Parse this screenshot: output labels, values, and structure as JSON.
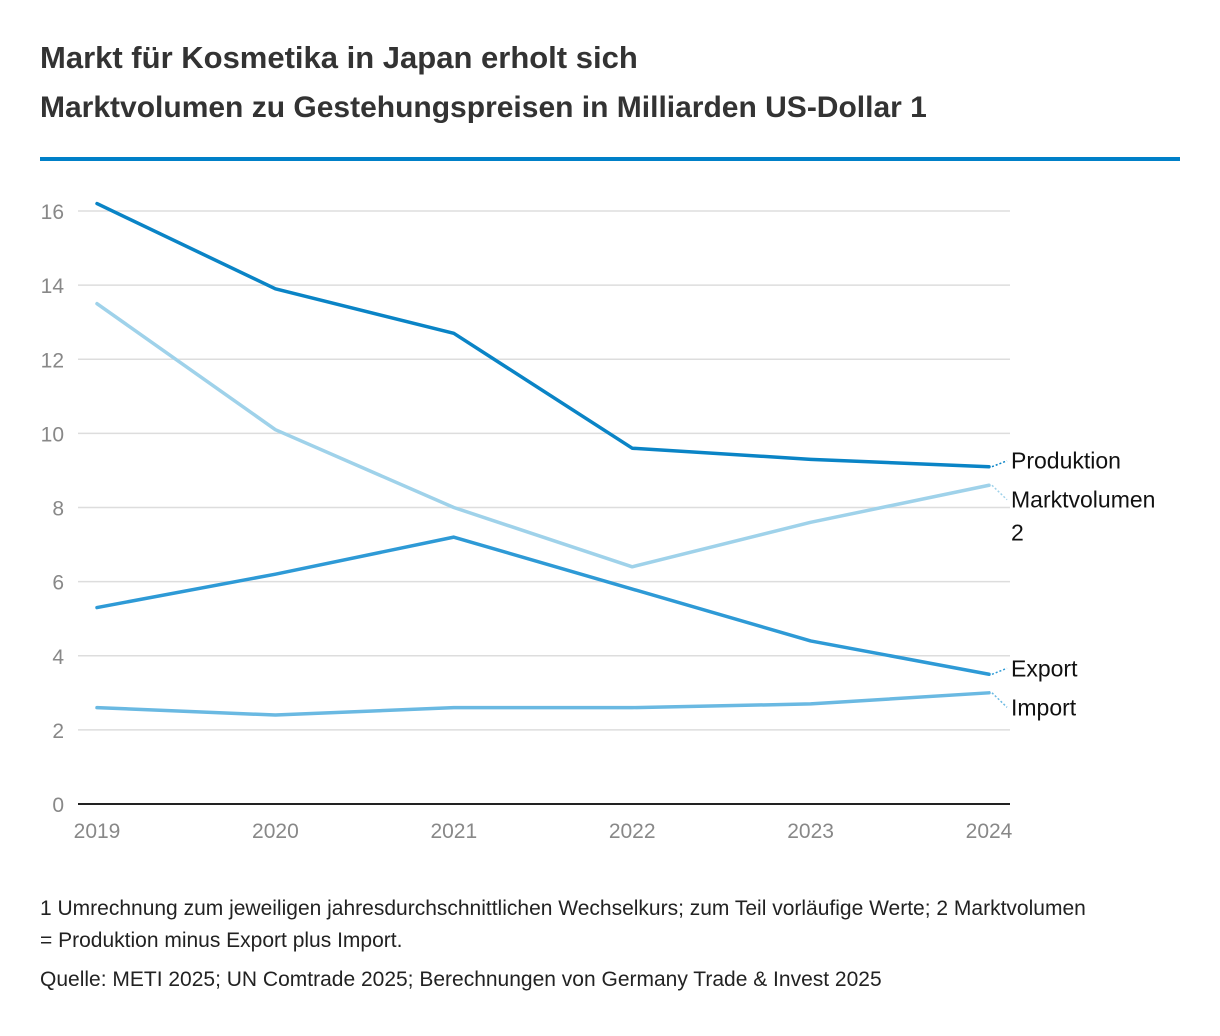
{
  "header": {
    "title": "Markt für Kosmetika in Japan erholt sich",
    "subtitle": "Marktvolumen zu Gestehungspreisen in Milliarden US-Dollar 1"
  },
  "footer": {
    "footnote": "1 Umrechnung zum jeweiligen jahresdurchschnittlichen Wechselkurs; zum Teil vorläufige Werte; 2 Marktvolumen = Produktion minus Export plus Import.",
    "source": "Quelle: METI 2025; UN Comtrade 2025; Berechnungen von Germany Trade & Invest 2025"
  },
  "colors": {
    "accent": "#0080c8",
    "grid": "#dddddd",
    "axis": "#222222",
    "tick_text": "#888888"
  },
  "chart_data": {
    "type": "line",
    "title": "Markt für Kosmetika in Japan erholt sich",
    "subtitle": "Marktvolumen zu Gestehungspreisen in Milliarden US-Dollar 1",
    "xlabel": "",
    "ylabel": "",
    "x": [
      "2019",
      "2020",
      "2021",
      "2022",
      "2023",
      "2024"
    ],
    "ylim": [
      0,
      16
    ],
    "yticks": [
      0,
      2,
      4,
      6,
      8,
      10,
      12,
      14,
      16
    ],
    "grid": true,
    "legend": "direct labels at line ends (right)",
    "series": [
      {
        "name": "Produktion",
        "label_lines": [
          "Produktion"
        ],
        "color": "#0a84c6",
        "values": [
          16.2,
          13.9,
          12.7,
          9.6,
          9.3,
          9.1
        ]
      },
      {
        "name": "Marktvolumen 2",
        "label_lines": [
          "Marktvolumen",
          "2"
        ],
        "color": "#9fd2ea",
        "values": [
          13.5,
          10.1,
          8.0,
          6.4,
          7.6,
          8.6
        ]
      },
      {
        "name": "Export",
        "label_lines": [
          "Export"
        ],
        "color": "#2e9ad6",
        "values": [
          5.3,
          6.2,
          7.2,
          5.8,
          4.4,
          3.5
        ]
      },
      {
        "name": "Import",
        "label_lines": [
          "Import"
        ],
        "color": "#6ab9e2",
        "values": [
          2.6,
          2.4,
          2.6,
          2.6,
          2.7,
          3.0
        ]
      }
    ]
  }
}
